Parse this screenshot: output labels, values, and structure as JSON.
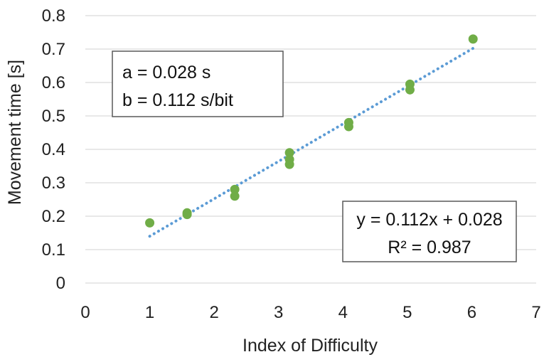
{
  "chart_data": {
    "type": "scatter",
    "title": "",
    "xlabel": "Index of Difficulty",
    "ylabel": "Movement time [s]",
    "xlim": [
      0,
      7
    ],
    "ylim": [
      0,
      0.8
    ],
    "xticks": [
      "0",
      "1",
      "2",
      "3",
      "4",
      "5",
      "6",
      "7"
    ],
    "yticks": [
      "0",
      "0.1",
      "0.2",
      "0.3",
      "0.4",
      "0.5",
      "0.6",
      "0.7",
      "0.8"
    ],
    "grid": "horizontal",
    "series": [
      {
        "points": [
          {
            "x": 1.0,
            "y": 0.18
          },
          {
            "x": 1.58,
            "y": 0.21
          },
          {
            "x": 1.58,
            "y": 0.205
          },
          {
            "x": 2.32,
            "y": 0.28
          },
          {
            "x": 2.32,
            "y": 0.26
          },
          {
            "x": 3.17,
            "y": 0.39
          },
          {
            "x": 3.17,
            "y": 0.37
          },
          {
            "x": 3.17,
            "y": 0.355
          },
          {
            "x": 4.09,
            "y": 0.48
          },
          {
            "x": 4.09,
            "y": 0.468
          },
          {
            "x": 5.04,
            "y": 0.595
          },
          {
            "x": 5.04,
            "y": 0.578
          },
          {
            "x": 6.02,
            "y": 0.73
          }
        ]
      }
    ],
    "trendline": {
      "type": "linear",
      "slope": 0.112,
      "intercept": 0.028,
      "x_from": 1.0,
      "x_to": 6.02
    },
    "annotations": {
      "params": {
        "line1": "a = 0.028 s",
        "line2": "b = 0.112 s/bit"
      },
      "equation": {
        "line1": "y = 0.112x + 0.028",
        "line2": "R² = 0.987"
      }
    },
    "colors": {
      "points": "#70ad47",
      "trendline": "#5b9bd5",
      "grid": "#d9d9d9",
      "box_border": "#595959"
    }
  }
}
